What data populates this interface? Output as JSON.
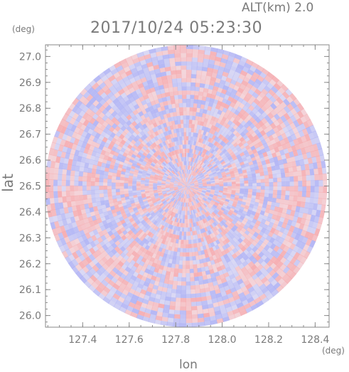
{
  "header": {
    "altitude_label": "ALT(km)",
    "altitude_value": "2.0",
    "datetime": "2017/10/24 05:23:30"
  },
  "units": {
    "y": "(deg)",
    "x": "(deg)"
  },
  "chart_data": {
    "type": "heatmap",
    "title": "",
    "xlabel": "lon",
    "ylabel": "lat",
    "xlim": [
      127.24,
      128.46
    ],
    "ylim": [
      25.955,
      27.045
    ],
    "x_ticks": [
      127.4,
      127.6,
      127.8,
      128.0,
      128.2,
      128.4
    ],
    "x_tick_labels": [
      "127.4",
      "127.6",
      "127.8",
      "128.0",
      "128.2",
      "128.4"
    ],
    "y_ticks": [
      26.0,
      26.1,
      26.2,
      26.3,
      26.4,
      26.5,
      26.6,
      26.7,
      26.8,
      26.9,
      27.0
    ],
    "y_tick_labels": [
      "26.0",
      "26.1",
      "26.2",
      "26.3",
      "26.4",
      "26.5",
      "26.6",
      "26.7",
      "26.8",
      "26.9",
      "27.0"
    ],
    "radar_center": {
      "lon": 127.845,
      "lat": 26.5
    },
    "radar_range_deg_lat": 0.545,
    "colors": {
      "positive": "#f6a9ad",
      "negative": "#aeb2f5",
      "axis": "#8a8a8a"
    },
    "grid": false
  }
}
